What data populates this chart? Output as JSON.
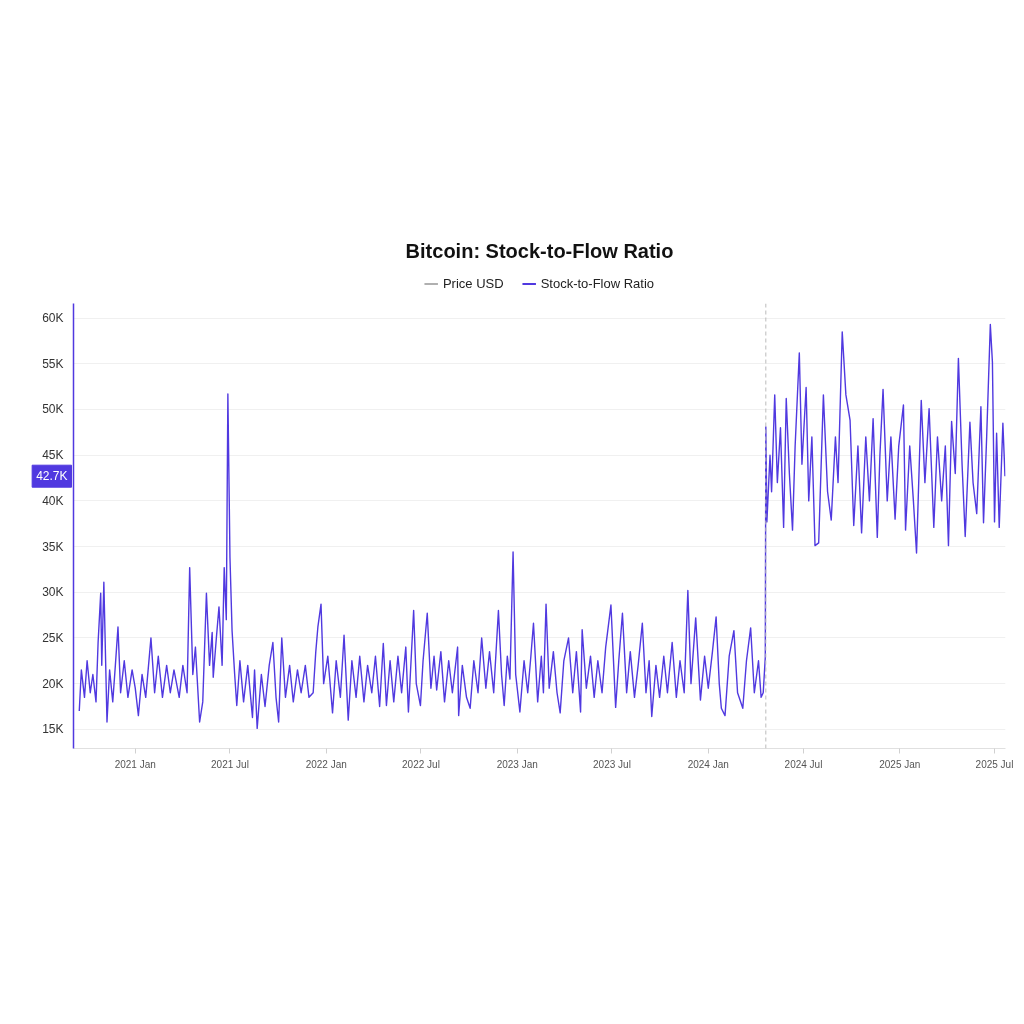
{
  "chart_data": {
    "type": "line",
    "title": "Bitcoin: Stock-to-Flow Ratio",
    "x": [
      "2020-09-16",
      "2020-09-20",
      "2020-09-26",
      "2020-10-01",
      "2020-10-07",
      "2020-10-12",
      "2020-10-18",
      "2020-10-22",
      "2020-10-27",
      "2020-10-29",
      "2020-11-02",
      "2020-11-08",
      "2020-11-13",
      "2020-11-19",
      "2020-11-24",
      "2020-11-29",
      "2020-12-04",
      "2020-12-11",
      "2020-12-18",
      "2020-12-26",
      "2021-01-01",
      "2021-01-07",
      "2021-01-14",
      "2021-01-21",
      "2021-01-31",
      "2021-02-07",
      "2021-02-14",
      "2021-02-22",
      "2021-03-02",
      "2021-03-09",
      "2021-03-16",
      "2021-03-26",
      "2021-04-02",
      "2021-04-10",
      "2021-04-15",
      "2021-04-21",
      "2021-04-26",
      "2021-05-04",
      "2021-05-10",
      "2021-05-17",
      "2021-05-23",
      "2021-05-28",
      "2021-05-30",
      "2021-06-05",
      "2021-06-10",
      "2021-06-16",
      "2021-06-20",
      "2021-06-24",
      "2021-06-27",
      "2021-07-01",
      "2021-07-05",
      "2021-07-10",
      "2021-07-14",
      "2021-07-20",
      "2021-07-27",
      "2021-08-04",
      "2021-08-13",
      "2021-08-17",
      "2021-08-22",
      "2021-08-30",
      "2021-09-06",
      "2021-09-14",
      "2021-09-21",
      "2021-09-27",
      "2021-10-02",
      "2021-10-08",
      "2021-10-15",
      "2021-10-23",
      "2021-10-30",
      "2021-11-07",
      "2021-11-14",
      "2021-11-22",
      "2021-11-29",
      "2021-12-07",
      "2021-12-12",
      "2021-12-16",
      "2021-12-22",
      "2021-12-27",
      "2022-01-04",
      "2022-01-13",
      "2022-01-20",
      "2022-01-28",
      "2022-02-04",
      "2022-02-12",
      "2022-02-19",
      "2022-02-27",
      "2022-03-06",
      "2022-03-14",
      "2022-03-21",
      "2022-03-29",
      "2022-04-05",
      "2022-04-13",
      "2022-04-20",
      "2022-04-26",
      "2022-05-03",
      "2022-05-10",
      "2022-05-18",
      "2022-05-25",
      "2022-06-02",
      "2022-06-07",
      "2022-06-17",
      "2022-06-22",
      "2022-06-30",
      "2022-07-05",
      "2022-07-13",
      "2022-07-20",
      "2022-07-26",
      "2022-07-31",
      "2022-08-08",
      "2022-08-15",
      "2022-08-23",
      "2022-08-30",
      "2022-09-09",
      "2022-09-11",
      "2022-09-18",
      "2022-09-26",
      "2022-10-03",
      "2022-10-10",
      "2022-10-18",
      "2022-10-25",
      "2022-11-02",
      "2022-11-09",
      "2022-11-17",
      "2022-11-26",
      "2022-12-02",
      "2022-12-07",
      "2022-12-13",
      "2022-12-18",
      "2022-12-24",
      "2022-12-29",
      "2023-01-06",
      "2023-01-14",
      "2023-01-21",
      "2023-01-27",
      "2023-02-01",
      "2023-02-09",
      "2023-02-16",
      "2023-02-20",
      "2023-02-25",
      "2023-03-03",
      "2023-03-11",
      "2023-03-18",
      "2023-03-24",
      "2023-03-31",
      "2023-04-09",
      "2023-04-17",
      "2023-04-24",
      "2023-05-02",
      "2023-05-05",
      "2023-05-13",
      "2023-05-21",
      "2023-05-28",
      "2023-06-04",
      "2023-06-12",
      "2023-06-19",
      "2023-06-29",
      "2023-07-08",
      "2023-07-14",
      "2023-07-21",
      "2023-07-29",
      "2023-08-05",
      "2023-08-13",
      "2023-08-20",
      "2023-08-28",
      "2023-09-04",
      "2023-09-10",
      "2023-09-15",
      "2023-09-23",
      "2023-09-30",
      "2023-10-08",
      "2023-10-15",
      "2023-10-24",
      "2023-11-01",
      "2023-11-08",
      "2023-11-16",
      "2023-11-23",
      "2023-11-29",
      "2023-12-08",
      "2023-12-17",
      "2023-12-25",
      "2024-01-01",
      "2024-01-09",
      "2024-01-16",
      "2024-01-22",
      "2024-01-26",
      "2024-02-02",
      "2024-02-10",
      "2024-02-19",
      "2024-02-26",
      "2024-03-07",
      "2024-03-14",
      "2024-03-22",
      "2024-03-29",
      "2024-04-06",
      "2024-04-11",
      "2024-04-15",
      "2024-04-19",
      "2024-04-20",
      "2024-04-22",
      "2024-04-28",
      "2024-05-01",
      "2024-05-07",
      "2024-05-12",
      "2024-05-18",
      "2024-05-24",
      "2024-05-29",
      "2024-06-04",
      "2024-06-10",
      "2024-06-15",
      "2024-06-23",
      "2024-06-28",
      "2024-07-06",
      "2024-07-11",
      "2024-07-17",
      "2024-07-23",
      "2024-07-30",
      "2024-08-08",
      "2024-08-16",
      "2024-08-23",
      "2024-08-31",
      "2024-09-05",
      "2024-09-13",
      "2024-09-20",
      "2024-09-28",
      "2024-10-05",
      "2024-10-13",
      "2024-10-20",
      "2024-10-28",
      "2024-11-04",
      "2024-11-11",
      "2024-11-19",
      "2024-11-24",
      "2024-11-30",
      "2024-12-08",
      "2024-12-15",
      "2024-12-23",
      "2024-12-30",
      "2025-01-08",
      "2025-01-12",
      "2025-01-20",
      "2025-01-27",
      "2025-02-02",
      "2025-02-11",
      "2025-02-18",
      "2025-02-26",
      "2025-03-07",
      "2025-03-14",
      "2025-03-22",
      "2025-03-29",
      "2025-04-04",
      "2025-04-10",
      "2025-04-17",
      "2025-04-23",
      "2025-04-30",
      "2025-05-06",
      "2025-05-15",
      "2025-05-21",
      "2025-05-28",
      "2025-06-05",
      "2025-06-10",
      "2025-06-16",
      "2025-06-23",
      "2025-06-27",
      "2025-07-01",
      "2025-07-05",
      "2025-07-10",
      "2025-07-17",
      "2025-07-21"
    ],
    "series": [
      {
        "name": "Price USD",
        "color": "#b0b0b0",
        "values": [
          null,
          null,
          null,
          null,
          null,
          null,
          null,
          null,
          null,
          null,
          null,
          null,
          null,
          null,
          null,
          null,
          null,
          null,
          null,
          null,
          null,
          null,
          null,
          null,
          null,
          null,
          null,
          null,
          null,
          null,
          null,
          null,
          null,
          null,
          null,
          null,
          null,
          null,
          null,
          null,
          null,
          null,
          null,
          null,
          null,
          null,
          null,
          null,
          null,
          null,
          null,
          null,
          null,
          null,
          null,
          null,
          null,
          null,
          null,
          null,
          null,
          null,
          null,
          null,
          null,
          null,
          null,
          null,
          null,
          null,
          null,
          null,
          null,
          null,
          null,
          null,
          null,
          null,
          null,
          null,
          null,
          null,
          null,
          null,
          null,
          null,
          null,
          null,
          null,
          null,
          null,
          null,
          null,
          null,
          null,
          null,
          null,
          null,
          null,
          null,
          null,
          null,
          null,
          null,
          null,
          null,
          null,
          null,
          null,
          null,
          null,
          null,
          null,
          null,
          null,
          null,
          null,
          null,
          null,
          null,
          null,
          null,
          null,
          null,
          null,
          null,
          null,
          null,
          null,
          null,
          null,
          null,
          null,
          null,
          null,
          null,
          null,
          null,
          null,
          null,
          null,
          null,
          null,
          null,
          null,
          null,
          null,
          null,
          null,
          null,
          null,
          null,
          null,
          null,
          null,
          null,
          null,
          null,
          null,
          null,
          null,
          null,
          null,
          null,
          null,
          null,
          null,
          null,
          null,
          null,
          null,
          null,
          null,
          null,
          null,
          null,
          null,
          null,
          null,
          null,
          null,
          null,
          null,
          null,
          null,
          null,
          null,
          null,
          null,
          null,
          null,
          null,
          null,
          null,
          null,
          null,
          null,
          null,
          null,
          null,
          null,
          null,
          null,
          null,
          null,
          null,
          null,
          null,
          null,
          null,
          null,
          null,
          null,
          null,
          null,
          null,
          null,
          null,
          null,
          null,
          null,
          null,
          null,
          null,
          null,
          null,
          null,
          null,
          null,
          null,
          null,
          null,
          null,
          null,
          null,
          null,
          null,
          null,
          null,
          null,
          null,
          null,
          null,
          null,
          null,
          null,
          null,
          null,
          null,
          null,
          null,
          null,
          null,
          null,
          null,
          null,
          null,
          null,
          null,
          null,
          null,
          null,
          null,
          null,
          null,
          null,
          null,
          null
        ]
      },
      {
        "name": "Stock-to-Flow Ratio",
        "color": "#5039e0",
        "values": [
          17000,
          21500,
          18500,
          22500,
          19000,
          21000,
          18000,
          24500,
          29900,
          22000,
          31100,
          15800,
          21500,
          18000,
          22000,
          26200,
          19000,
          22500,
          18500,
          21500,
          19500,
          16500,
          21000,
          18500,
          25000,
          19000,
          23000,
          18500,
          22000,
          19000,
          21500,
          18500,
          22000,
          19000,
          32700,
          21000,
          24000,
          15800,
          18000,
          29900,
          22000,
          25600,
          20700,
          25000,
          28400,
          22000,
          32700,
          27000,
          51700,
          33800,
          25800,
          21000,
          17600,
          22500,
          18000,
          22000,
          16300,
          21500,
          15100,
          21000,
          17500,
          22000,
          24500,
          18500,
          15800,
          25000,
          18500,
          22000,
          18000,
          21500,
          19000,
          22000,
          18500,
          19000,
          23500,
          26200,
          28700,
          20000,
          23000,
          16800,
          22500,
          18500,
          25300,
          16000,
          22500,
          18500,
          23000,
          18000,
          22000,
          19000,
          23000,
          17500,
          24400,
          17600,
          22500,
          18000,
          23000,
          19000,
          24000,
          16900,
          28000,
          20000,
          17600,
          22500,
          27700,
          19500,
          23000,
          19300,
          23500,
          18000,
          22500,
          19000,
          24000,
          16500,
          22000,
          18500,
          17300,
          22500,
          19000,
          25000,
          19500,
          23500,
          19000,
          28000,
          21000,
          17600,
          23000,
          20500,
          34400,
          21000,
          16900,
          22500,
          19000,
          23000,
          26600,
          18000,
          23000,
          19000,
          28700,
          19500,
          23500,
          19000,
          16800,
          22500,
          25000,
          19000,
          23500,
          16900,
          25900,
          19500,
          23000,
          18500,
          22500,
          19000,
          24000,
          28600,
          17400,
          22500,
          27700,
          19000,
          23500,
          18500,
          22000,
          26600,
          19000,
          22500,
          16400,
          22000,
          18500,
          23000,
          19000,
          24500,
          18500,
          22500,
          19000,
          30200,
          20000,
          27200,
          18200,
          23000,
          19500,
          23500,
          27300,
          20000,
          17300,
          16500,
          23000,
          25800,
          19000,
          17300,
          22500,
          26100,
          19000,
          22500,
          18500,
          19000,
          22900,
          48100,
          37700,
          45000,
          41000,
          51600,
          42000,
          48000,
          37100,
          51200,
          43000,
          36800,
          46000,
          56200,
          44000,
          52400,
          40000,
          47000,
          35100,
          35400,
          51600,
          41000,
          37900,
          47000,
          42000,
          58500,
          51600,
          48800,
          37300,
          46000,
          36500,
          47000,
          40000,
          49000,
          36000,
          45000,
          52200,
          40000,
          47000,
          38000,
          46000,
          50500,
          36800,
          46000,
          40000,
          34300,
          51000,
          42000,
          50100,
          37100,
          47000,
          40000,
          46000,
          35100,
          48700,
          43000,
          55600,
          44000,
          36100,
          48600,
          42000,
          38600,
          50300,
          37600,
          47000,
          59300,
          55200,
          37700,
          47400,
          37100,
          48500,
          42700
        ]
      }
    ],
    "xlim": [
      "2020-09-05",
      "2025-07-22"
    ],
    "ylim": [
      12900,
      61600
    ],
    "xticks": [
      {
        "value": "2021-01-01",
        "label": "2021 Jan"
      },
      {
        "value": "2021-07-01",
        "label": "2021 Jul"
      },
      {
        "value": "2022-01-01",
        "label": "2022 Jan"
      },
      {
        "value": "2022-07-01",
        "label": "2022 Jul"
      },
      {
        "value": "2023-01-01",
        "label": "2023 Jan"
      },
      {
        "value": "2023-07-01",
        "label": "2023 Jul"
      },
      {
        "value": "2024-01-01",
        "label": "2024 Jan"
      },
      {
        "value": "2024-07-01",
        "label": "2024 Jul"
      },
      {
        "value": "2025-01-01",
        "label": "2025 Jan"
      },
      {
        "value": "2025-07-01",
        "label": "2025 Jul"
      }
    ],
    "yticks": [
      {
        "value": 15000,
        "label": "15K"
      },
      {
        "value": 20000,
        "label": "20K"
      },
      {
        "value": 25000,
        "label": "25K"
      },
      {
        "value": 30000,
        "label": "30K"
      },
      {
        "value": 35000,
        "label": "35K"
      },
      {
        "value": 40000,
        "label": "40K"
      },
      {
        "value": 45000,
        "label": "45K"
      },
      {
        "value": 50000,
        "label": "50K"
      },
      {
        "value": 55000,
        "label": "55K"
      },
      {
        "value": 60000,
        "label": "60K"
      }
    ],
    "grid": "y",
    "legend": "top",
    "ref_lines": [
      {
        "axis": "x",
        "value": "2024-04-20",
        "color": "#bbbbbb",
        "line_style": "dashed"
      }
    ],
    "annotations": [
      {
        "text": "42.7K",
        "y": 42700
      }
    ]
  }
}
